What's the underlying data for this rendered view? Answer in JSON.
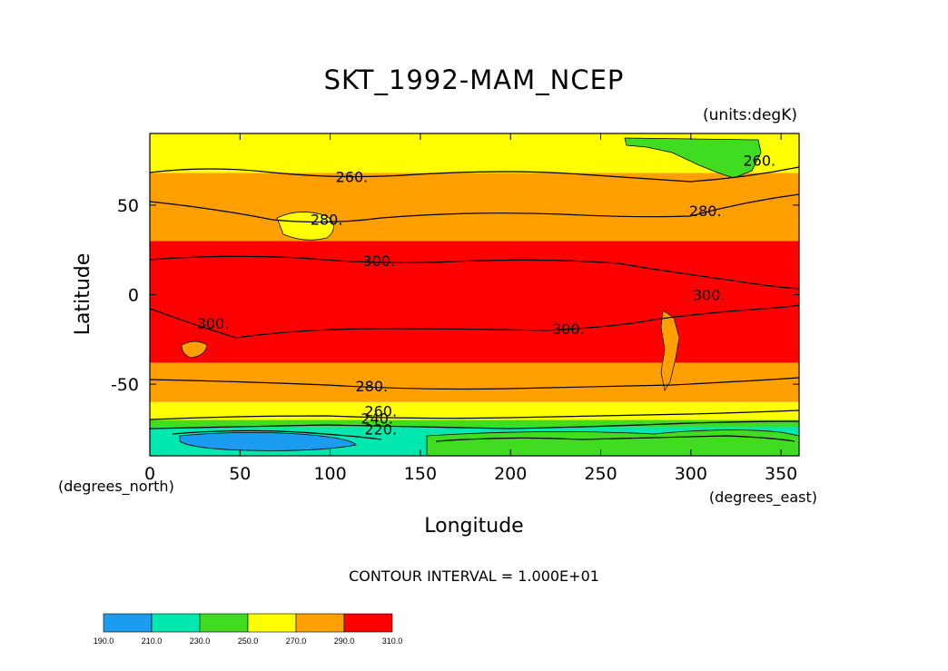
{
  "chart_data": {
    "type": "heatmap",
    "title": "SKT_1992-MAM_NCEP",
    "units": "(units:degK)",
    "xlabel": "Longitude",
    "ylabel": "Latitude",
    "x_unit_label": "(degrees_east)",
    "y_unit_label": "(degrees_north)",
    "xlim": [
      0,
      360
    ],
    "ylim": [
      -90,
      90
    ],
    "x_ticks": [
      0,
      50,
      100,
      150,
      200,
      250,
      300,
      350
    ],
    "y_ticks": [
      50,
      0,
      -50
    ],
    "contour_interval_text": "CONTOUR INTERVAL = 1.000E+01",
    "contour_labels": [
      {
        "text": "260.",
        "lon": 112,
        "lat": 66
      },
      {
        "text": "280.",
        "lon": 98,
        "lat": 42
      },
      {
        "text": "300.",
        "lon": 127,
        "lat": 19
      },
      {
        "text": "260.",
        "lon": 338,
        "lat": 75
      },
      {
        "text": "280.",
        "lon": 308,
        "lat": 47
      },
      {
        "text": "300.",
        "lon": 310,
        "lat": 0
      },
      {
        "text": "300.",
        "lon": 35,
        "lat": -16
      },
      {
        "text": "300.",
        "lon": 232,
        "lat": -19
      },
      {
        "text": "280.",
        "lon": 123,
        "lat": -51
      },
      {
        "text": "260.",
        "lon": 128,
        "lat": -65
      },
      {
        "text": "240.",
        "lon": 126,
        "lat": -69
      },
      {
        "text": "220.",
        "lon": 128,
        "lat": -75
      }
    ],
    "colorbar": {
      "levels": [
        "190.0",
        "210.0",
        "230.0",
        "250.0",
        "270.0",
        "290.0",
        "310.0"
      ],
      "colors": [
        "#1a9cf0",
        "#00e8b0",
        "#3fdc1f",
        "#ffff00",
        "#ffa000",
        "#ff0000"
      ]
    },
    "bands": [
      {
        "range": "290-310",
        "color": "#ff0000",
        "lat_south": -38,
        "lat_north": 30
      },
      {
        "range": "270-290",
        "color": "#ffa000",
        "lat_south": -60,
        "lat_north": -38
      },
      {
        "range": "270-290",
        "color": "#ffa000",
        "lat_south": 30,
        "lat_north": 68
      },
      {
        "range": "250-270",
        "color": "#ffff00",
        "lat_south": 68,
        "lat_north": 90
      },
      {
        "range": "250-270",
        "color": "#ffff00",
        "lat_south": -70,
        "lat_north": -60
      },
      {
        "range": "230-250",
        "color": "#3fdc1f",
        "lat_south": -74,
        "lat_north": -70
      },
      {
        "range": "210-230",
        "color": "#00e8b0",
        "lat_south": -90,
        "lat_north": -74
      }
    ]
  }
}
